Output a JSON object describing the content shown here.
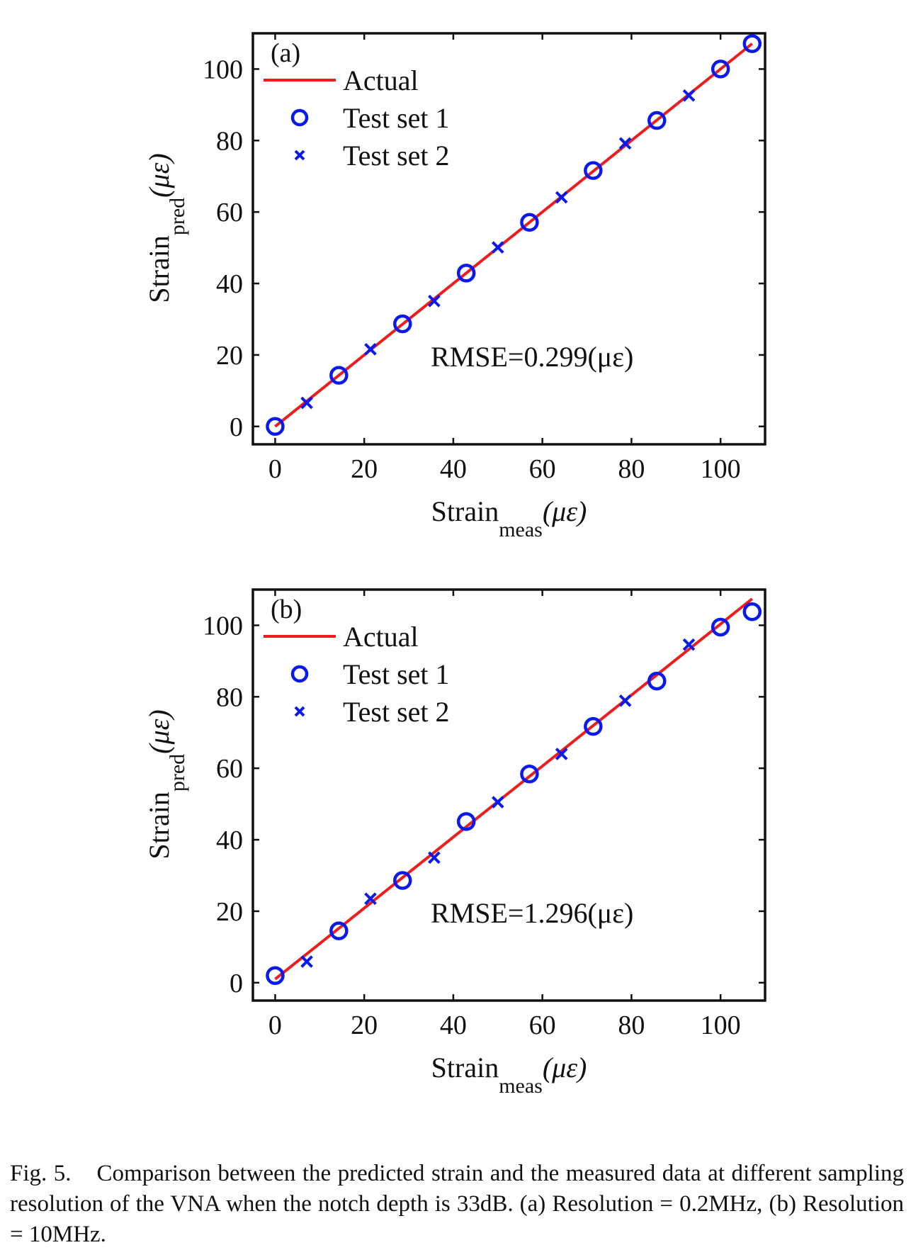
{
  "chart_data": [
    {
      "type": "scatter",
      "panel_label": "(a)",
      "xlabel_main": "Strain",
      "xlabel_sub": "meas",
      "xlabel_unit": "(με)",
      "ylabel_main": "Strain",
      "ylabel_sub": "pred",
      "ylabel_unit": "(με)",
      "xlim": [
        -5,
        110
      ],
      "ylim": [
        -5,
        110
      ],
      "xticks": [
        0,
        20,
        40,
        60,
        80,
        100
      ],
      "yticks": [
        0,
        20,
        40,
        60,
        80,
        100
      ],
      "annotation": "RMSE=0.299(με)",
      "legend": [
        "Actual",
        "Test set 1",
        "Test set 2"
      ],
      "legend_location": "top-left",
      "colors": {
        "actual": "#ee1c1c",
        "points": "#0a1aee"
      },
      "series": [
        {
          "name": "Actual",
          "style": "line",
          "x": [
            0,
            107.1
          ],
          "y": [
            0,
            107.1
          ]
        },
        {
          "name": "Test set 1",
          "style": "circle",
          "x": [
            0,
            14.3,
            28.6,
            42.9,
            57.1,
            71.4,
            85.7,
            100.0,
            107.1
          ],
          "y": [
            0,
            14.3,
            28.7,
            42.9,
            57.1,
            71.6,
            85.6,
            100.0,
            107.1
          ]
        },
        {
          "name": "Test set 2",
          "style": "x",
          "x": [
            7.1,
            21.4,
            35.7,
            50.0,
            64.3,
            78.6,
            92.9
          ],
          "y": [
            6.6,
            21.6,
            35.1,
            50.1,
            64.1,
            79.2,
            92.6
          ]
        }
      ]
    },
    {
      "type": "scatter",
      "panel_label": "(b)",
      "xlabel_main": "Strain",
      "xlabel_sub": "meas",
      "xlabel_unit": "(με)",
      "ylabel_main": "Strain",
      "ylabel_sub": "pred",
      "ylabel_unit": "(με)",
      "xlim": [
        -5,
        110
      ],
      "ylim": [
        -5,
        110
      ],
      "xticks": [
        0,
        20,
        40,
        60,
        80,
        100
      ],
      "yticks": [
        0,
        20,
        40,
        60,
        80,
        100
      ],
      "annotation": "RMSE=1.296(με)",
      "legend": [
        "Actual",
        "Test set 1",
        "Test set 2"
      ],
      "legend_location": "top-left",
      "colors": {
        "actual": "#ee1c1c",
        "points": "#0a1aee"
      },
      "series": [
        {
          "name": "Actual",
          "style": "line",
          "x": [
            0,
            107.1
          ],
          "y": [
            1.0,
            107.4
          ]
        },
        {
          "name": "Test set 1",
          "style": "circle",
          "x": [
            0,
            14.3,
            28.6,
            42.9,
            57.1,
            71.4,
            85.7,
            100.0,
            107.1
          ],
          "y": [
            2.0,
            14.5,
            28.6,
            45.1,
            58.4,
            71.7,
            84.4,
            99.5,
            103.8
          ]
        },
        {
          "name": "Test set 2",
          "style": "x",
          "x": [
            7.1,
            21.4,
            35.7,
            50.0,
            64.3,
            78.6,
            92.9
          ],
          "y": [
            5.9,
            23.5,
            35.0,
            50.5,
            64.0,
            78.9,
            94.6
          ]
        }
      ]
    }
  ],
  "caption": {
    "lead": "Fig. 5.",
    "text": "Comparison between the predicted strain and the measured data at different sampling resolution of the VNA when the notch depth is 33dB. (a) Resolution = 0.2MHz, (b) Resolution = 10MHz."
  }
}
